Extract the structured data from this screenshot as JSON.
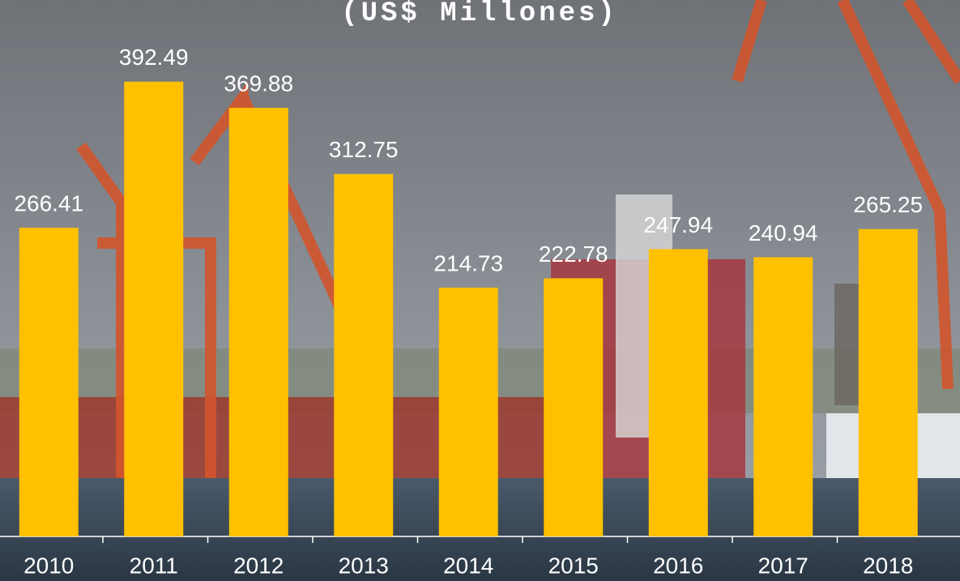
{
  "chart_data": {
    "type": "bar",
    "title": "(US$ Millones)",
    "categories": [
      "2010",
      "2011",
      "2012",
      "2013",
      "2014",
      "2015",
      "2016",
      "2017",
      "2018"
    ],
    "values": [
      266.41,
      392.49,
      369.88,
      312.75,
      214.73,
      222.78,
      247.94,
      240.94,
      265.25
    ],
    "color": "#ffc000",
    "ylim": [
      0,
      400
    ]
  }
}
